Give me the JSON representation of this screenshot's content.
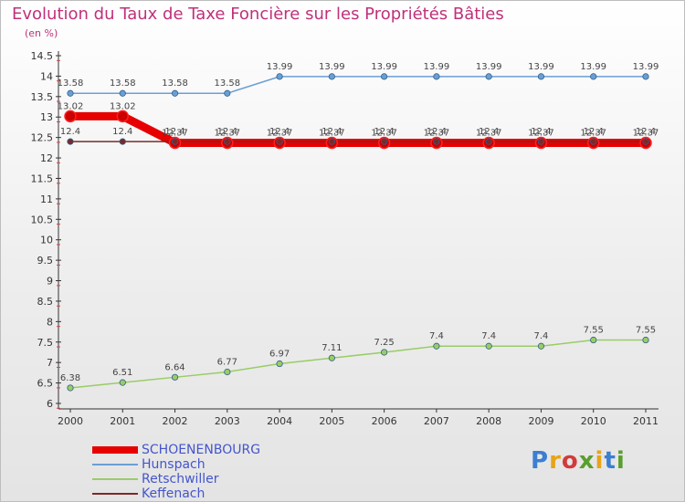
{
  "title": "Evolution du Taux de Taxe Foncière sur les Propriétés Bâties",
  "unit_label": "(en %)",
  "logo": {
    "text": "Proxiti",
    "colors": [
      "#3b7fd1",
      "#e8a317",
      "#d13b3b",
      "#5a9e2f",
      "#e8a317",
      "#3b7fd1",
      "#5a9e2f"
    ]
  },
  "chart_data": {
    "type": "line",
    "x": [
      "2000",
      "2001",
      "2002",
      "2003",
      "2004",
      "2005",
      "2006",
      "2007",
      "2008",
      "2009",
      "2010",
      "2011"
    ],
    "ylim": [
      6,
      14.5
    ],
    "yticks": [
      "6",
      "6.5",
      "7",
      "7.5",
      "8",
      "8.5",
      "9",
      "9.5",
      "10",
      "10.5",
      "11",
      "11.5",
      "12",
      "12.5",
      "13",
      "13.5",
      "14",
      "14.5"
    ],
    "grid": false,
    "series": [
      {
        "name": "SCHOENENBOURG",
        "color": "#e60000",
        "width": 9,
        "values": [
          13.02,
          13.02,
          12.37,
          12.37,
          12.37,
          12.37,
          12.37,
          12.37,
          12.37,
          12.37,
          12.37,
          12.37
        ],
        "labels": [
          "13.02",
          "13.02",
          "12.37",
          "12.37",
          "12.37",
          "12.37",
          "12.37",
          "12.37",
          "12.37",
          "12.37",
          "12.37",
          "12.37"
        ]
      },
      {
        "name": "Hunspach",
        "color": "#6a9fd4",
        "width": 1.5,
        "values": [
          13.58,
          13.58,
          13.58,
          13.58,
          13.99,
          13.99,
          13.99,
          13.99,
          13.99,
          13.99,
          13.99,
          13.99
        ],
        "labels": [
          "13.58",
          "13.58",
          "13.58",
          "13.58",
          "13.99",
          "13.99",
          "13.99",
          "13.99",
          "13.99",
          "13.99",
          "13.99",
          "13.99"
        ]
      },
      {
        "name": "Retschwiller",
        "color": "#99cc66",
        "width": 1.5,
        "values": [
          6.38,
          6.51,
          6.64,
          6.77,
          6.97,
          7.11,
          7.25,
          7.4,
          7.4,
          7.4,
          7.55,
          7.55
        ],
        "labels": [
          "6.38",
          "6.51",
          "6.64",
          "6.77",
          "6.97",
          "7.11",
          "7.25",
          "7.4",
          "7.4",
          "7.4",
          "7.55",
          "7.55"
        ]
      },
      {
        "name": "Keffenach",
        "color": "#7a2a2a",
        "width": 1.5,
        "values": [
          12.4,
          12.4,
          12.4,
          12.4,
          12.4,
          12.4,
          12.4,
          12.4,
          12.4,
          12.4,
          12.4,
          12.4
        ],
        "labels": [
          "12.4",
          "12.4",
          "12.4",
          "12.4",
          "12.4",
          "12.4",
          "12.4",
          "12.4",
          "12.4",
          "12.4",
          "12.4",
          "12.4"
        ]
      }
    ]
  }
}
